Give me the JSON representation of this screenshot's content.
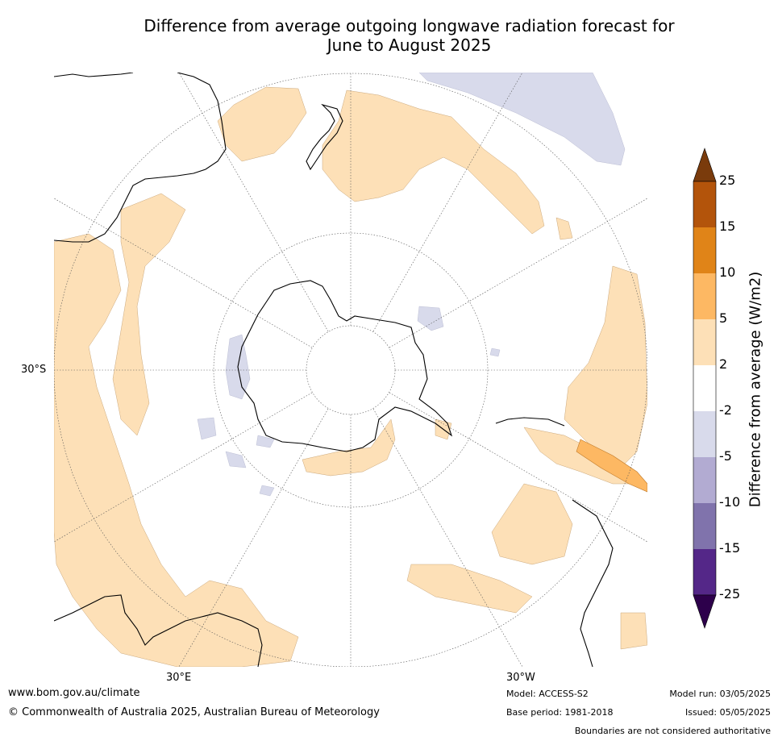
{
  "title": {
    "line1": "Difference from average outgoing longwave radiation forecast for",
    "line2": "June to August 2025"
  },
  "map": {
    "projection": "south polar stereographic",
    "labels": {
      "lat_30s": "30°S",
      "lon_30e": "30°E",
      "lon_30w": "30°W"
    }
  },
  "colorbar": {
    "title": "Difference from average (W/m2)",
    "ticks": [
      "25",
      "15",
      "10",
      "5",
      "2",
      "-2",
      "-5",
      "-10",
      "-15",
      "-25"
    ],
    "levels": [
      {
        "range": "above 25",
        "color": "#7a3b0c"
      },
      {
        "range": "15 to 25",
        "color": "#b3540b"
      },
      {
        "range": "10 to 15",
        "color": "#e08418"
      },
      {
        "range": "5 to 10",
        "color": "#fdb863"
      },
      {
        "range": "2 to 5",
        "color": "#fde0b7"
      },
      {
        "range": "-2 to 2",
        "color": "#ffffff"
      },
      {
        "range": "-5 to -2",
        "color": "#d8daeb"
      },
      {
        "range": "-10 to -5",
        "color": "#b2abd2"
      },
      {
        "range": "-15 to -10",
        "color": "#8073ac"
      },
      {
        "range": "-25 to -15",
        "color": "#542788"
      },
      {
        "range": "below -25",
        "color": "#2d004b"
      }
    ]
  },
  "footer": {
    "website": "www.bom.gov.au/climate",
    "copyright": "© Commonwealth of Australia 2025, Australian Bureau of Meteorology",
    "model": "Model: ACCESS-S2",
    "base_period": "Base period: 1981-2018",
    "model_run": "Model run: 03/05/2025",
    "issued": "Issued: 05/05/2025",
    "disclaimer": "Boundaries are not considered authoritative"
  }
}
